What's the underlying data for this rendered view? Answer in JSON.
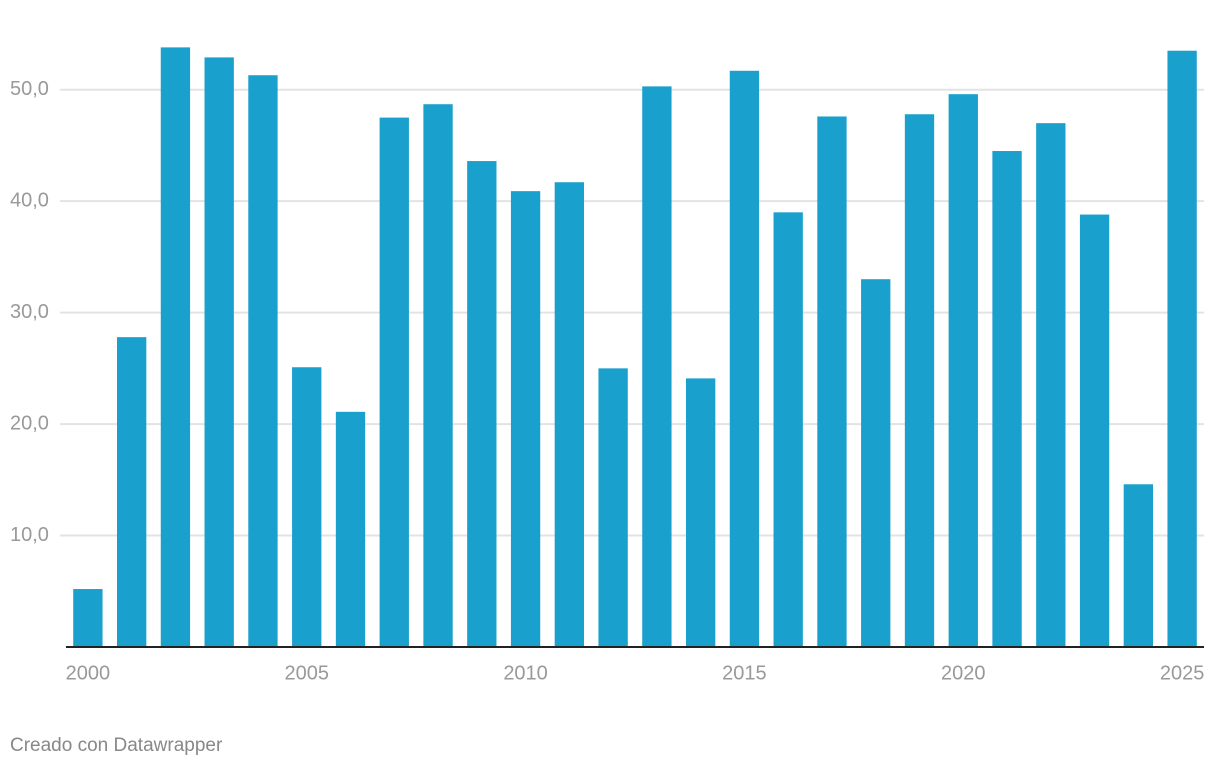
{
  "chart_data": {
    "type": "bar",
    "categories": [
      "2000",
      null,
      null,
      null,
      null,
      "2005",
      null,
      null,
      null,
      null,
      "2010",
      null,
      null,
      null,
      null,
      "2015",
      null,
      null,
      null,
      null,
      "2020",
      null,
      null,
      null,
      null,
      "2025"
    ],
    "values": [
      5.2,
      27.8,
      53.8,
      52.9,
      51.3,
      25.1,
      21.1,
      47.5,
      48.7,
      43.6,
      40.9,
      41.7,
      25.0,
      50.3,
      24.1,
      51.7,
      39.0,
      47.6,
      33.0,
      47.8,
      49.6,
      44.5,
      47.0,
      38.8,
      14.6,
      53.5
    ],
    "color": "#1aa0cc",
    "ylim": [
      0,
      55
    ],
    "yticks": [
      {
        "value": 10,
        "label": "10,0"
      },
      {
        "value": 20,
        "label": "20,0"
      },
      {
        "value": 30,
        "label": "30,0"
      },
      {
        "value": 40,
        "label": "40,0"
      },
      {
        "value": 50,
        "label": "50,0"
      }
    ],
    "grid": true,
    "credit": "Creado con Datawrapper"
  }
}
